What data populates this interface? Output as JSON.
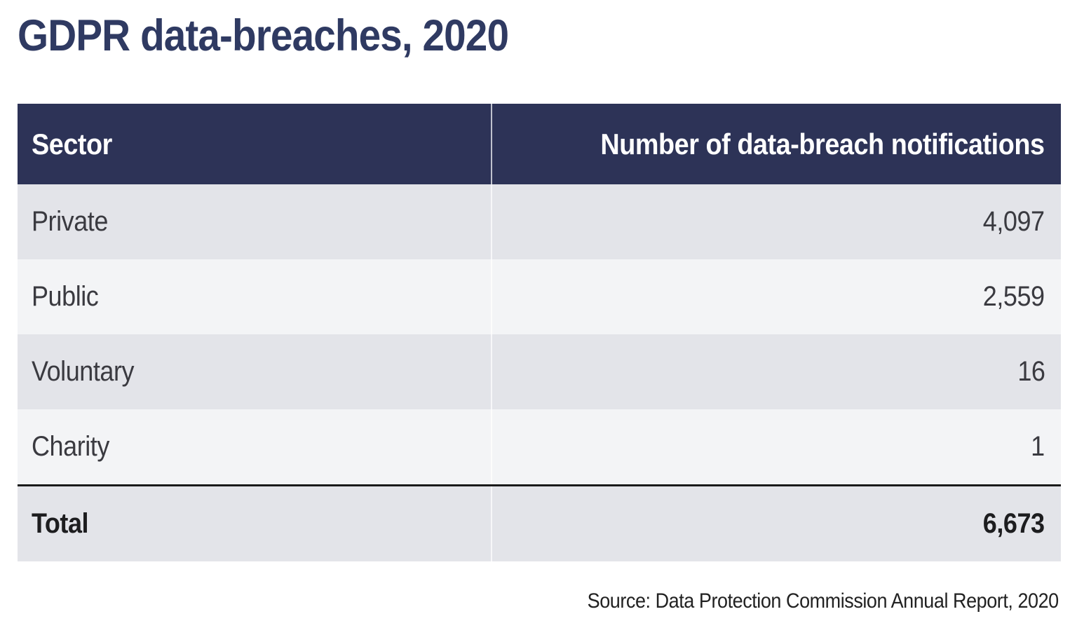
{
  "title": {
    "text": "GDPR data-breaches, 2020",
    "color": "#2f3a62"
  },
  "table": {
    "header": {
      "col1": "Sector",
      "col2": "Number of data-breach notifications",
      "bg": "#2d3357",
      "text_color": "#ffffff"
    },
    "rows": [
      {
        "sector": "Private",
        "value": "4,097"
      },
      {
        "sector": "Public",
        "value": "2,559"
      },
      {
        "sector": "Voluntary",
        "value": "16"
      },
      {
        "sector": "Charity",
        "value": "1"
      }
    ],
    "total": {
      "label": "Total",
      "value": "6,673"
    },
    "row_colors": {
      "odd": "#e3e4e9",
      "even": "#f3f4f6"
    },
    "total_rule_color": "#1a1a1a"
  },
  "source": {
    "text": "Source: Data Protection Commission Annual Report, 2020"
  },
  "chart_data": {
    "type": "table",
    "title": "GDPR data-breaches, 2020",
    "columns": [
      "Sector",
      "Number of data-breach notifications"
    ],
    "rows": [
      [
        "Private",
        4097
      ],
      [
        "Public",
        2559
      ],
      [
        "Voluntary",
        16
      ],
      [
        "Charity",
        1
      ]
    ],
    "total": [
      "Total",
      6673
    ],
    "source": "Source: Data Protection Commission Annual Report, 2020"
  }
}
